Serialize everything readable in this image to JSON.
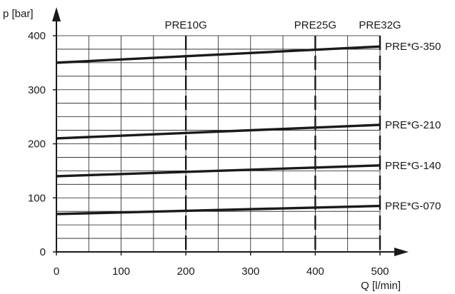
{
  "chart_data": {
    "type": "line",
    "xlabel": "Q [l/min]",
    "ylabel": "p [bar]",
    "xlim": [
      0,
      500
    ],
    "ylim": [
      0,
      400
    ],
    "x_ticks": [
      "0",
      "100",
      "200",
      "300",
      "400",
      "500"
    ],
    "y_ticks": [
      "0",
      "100",
      "200",
      "300",
      "400"
    ],
    "grid": true,
    "series": [
      {
        "name": "PRE*G-070",
        "x": [
          0,
          500
        ],
        "y": [
          70,
          85
        ]
      },
      {
        "name": "PRE*G-140",
        "x": [
          0,
          500
        ],
        "y": [
          140,
          160
        ]
      },
      {
        "name": "PRE*G-210",
        "x": [
          0,
          500
        ],
        "y": [
          210,
          235
        ]
      },
      {
        "name": "PRE*G-350",
        "x": [
          0,
          500
        ],
        "y": [
          350,
          380
        ]
      }
    ],
    "size_markers": [
      {
        "label": "PRE10G",
        "x": 200
      },
      {
        "label": "PRE25G",
        "x": 400
      },
      {
        "label": "PRE32G",
        "x": 500
      }
    ],
    "colors": {
      "lines": "#1a1a1a",
      "grid": "#1a1a1a"
    }
  }
}
